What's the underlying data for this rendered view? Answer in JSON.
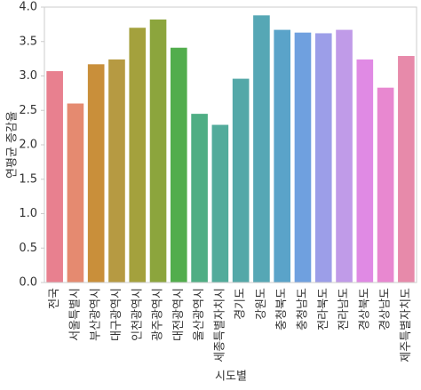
{
  "chart_data": {
    "type": "bar",
    "x_label": "시도별",
    "y_label": "연평균 증감율",
    "categories": [
      "전국",
      "서울특별시",
      "부산광역시",
      "대구광역시",
      "인천광역시",
      "광주광역시",
      "대전광역시",
      "울산광역시",
      "세종특별자치시",
      "경기도",
      "강원도",
      "충청북도",
      "충청남도",
      "전라북도",
      "전라남도",
      "경상북도",
      "경상남도",
      "제주특별자치도"
    ],
    "values": [
      3.07,
      2.6,
      3.17,
      3.24,
      3.7,
      3.82,
      3.41,
      2.45,
      2.29,
      2.96,
      3.88,
      3.67,
      3.63,
      3.62,
      3.67,
      3.24,
      2.83,
      3.29
    ],
    "colors": [
      "#e8808f",
      "#e58a70",
      "#c98f3a",
      "#b69a42",
      "#a4a13d",
      "#8ca53d",
      "#52ad4d",
      "#4fae84",
      "#52ab9b",
      "#54a8a8",
      "#56a7b5",
      "#5aa3c9",
      "#6fa0df",
      "#9c9ee8",
      "#c09be8",
      "#e08ae4",
      "#e888d0",
      "#e78aaa"
    ],
    "ylim": [
      0,
      4.0
    ],
    "yticks": [
      {
        "value": 0,
        "label": "0.0"
      },
      {
        "value": 0.5,
        "label": "0.5"
      },
      {
        "value": 1,
        "label": "1.0"
      },
      {
        "value": 1.5,
        "label": "1.5"
      },
      {
        "value": 2,
        "label": "2.0"
      },
      {
        "value": 2.5,
        "label": "2.5"
      },
      {
        "value": 3,
        "label": "3.0"
      },
      {
        "value": 3.5,
        "label": "3.5"
      },
      {
        "value": 4,
        "label": "4.0"
      }
    ]
  }
}
